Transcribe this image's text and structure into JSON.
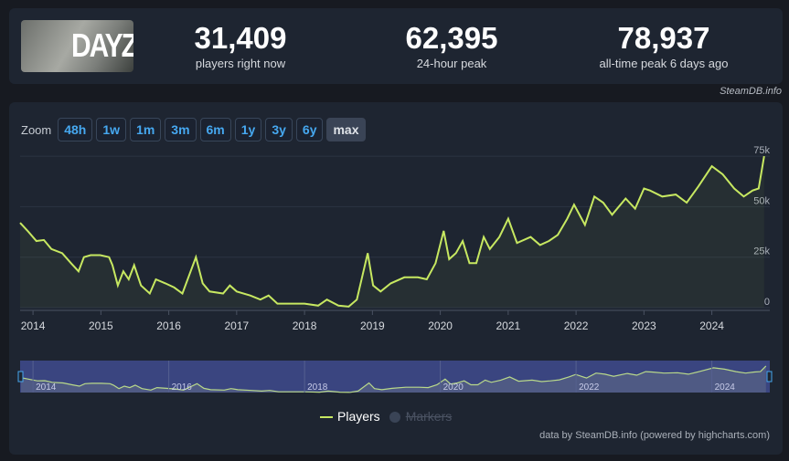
{
  "header": {
    "game_logo_text": "DAYZ",
    "stats": [
      {
        "value": "31,409",
        "label": "players right now"
      },
      {
        "value": "62,395",
        "label": "24-hour peak"
      },
      {
        "value": "78,937",
        "label": "all-time peak 6 days ago"
      }
    ],
    "credit": "SteamDB.info"
  },
  "zoom": {
    "label": "Zoom",
    "buttons": [
      "48h",
      "1w",
      "1m",
      "3m",
      "6m",
      "1y",
      "3y",
      "6y",
      "max"
    ],
    "selected": "max"
  },
  "legend": {
    "players": "Players",
    "markers": "Markers",
    "markers_hidden": true
  },
  "footer": "data by SteamDB.info (powered by highcharts.com)",
  "colors": {
    "line": "#c7e861",
    "navigator_mask": "#3a4580",
    "background": "#1e2531"
  },
  "chart_data": {
    "type": "line",
    "grid": true,
    "ylim": [
      0,
      80000
    ],
    "y_ticks": [
      "0",
      "25k",
      "50k",
      "75k"
    ],
    "y_tick_values": [
      0,
      25000,
      50000,
      75000
    ],
    "x_ticks": [
      "2014",
      "2015",
      "2016",
      "2017",
      "2018",
      "2019",
      "2020",
      "2021",
      "2022",
      "2023",
      "2024"
    ],
    "x_range": [
      2013.81,
      2024.8
    ],
    "series": [
      {
        "name": "Players",
        "points": [
          [
            2013.81,
            42000
          ],
          [
            2013.92,
            38000
          ],
          [
            2014.05,
            33000
          ],
          [
            2014.16,
            33500
          ],
          [
            2014.27,
            29000
          ],
          [
            2014.43,
            27000
          ],
          [
            2014.56,
            22000
          ],
          [
            2014.67,
            18000
          ],
          [
            2014.75,
            25000
          ],
          [
            2014.85,
            26000
          ],
          [
            2014.99,
            26000
          ],
          [
            2015.12,
            25000
          ],
          [
            2015.17,
            21000
          ],
          [
            2015.25,
            11000
          ],
          [
            2015.33,
            18000
          ],
          [
            2015.41,
            14000
          ],
          [
            2015.49,
            21000
          ],
          [
            2015.59,
            11000
          ],
          [
            2015.72,
            7000
          ],
          [
            2015.81,
            14000
          ],
          [
            2015.95,
            12000
          ],
          [
            2016.08,
            10000
          ],
          [
            2016.2,
            7000
          ],
          [
            2016.4,
            25000
          ],
          [
            2016.5,
            12000
          ],
          [
            2016.6,
            8000
          ],
          [
            2016.8,
            7000
          ],
          [
            2016.9,
            11000
          ],
          [
            2017.0,
            8000
          ],
          [
            2017.2,
            6000
          ],
          [
            2017.35,
            4000
          ],
          [
            2017.47,
            6000
          ],
          [
            2017.6,
            2000
          ],
          [
            2018.0,
            2000
          ],
          [
            2018.2,
            1000
          ],
          [
            2018.33,
            4000
          ],
          [
            2018.5,
            1000
          ],
          [
            2018.65,
            500
          ],
          [
            2018.77,
            4000
          ],
          [
            2018.93,
            27000
          ],
          [
            2019.01,
            11000
          ],
          [
            2019.12,
            8000
          ],
          [
            2019.27,
            12000
          ],
          [
            2019.47,
            15000
          ],
          [
            2019.67,
            15000
          ],
          [
            2019.8,
            14000
          ],
          [
            2019.93,
            22000
          ],
          [
            2020.05,
            38000
          ],
          [
            2020.13,
            24000
          ],
          [
            2020.23,
            27000
          ],
          [
            2020.33,
            33000
          ],
          [
            2020.43,
            22000
          ],
          [
            2020.53,
            22000
          ],
          [
            2020.64,
            35000
          ],
          [
            2020.73,
            29000
          ],
          [
            2020.87,
            35000
          ],
          [
            2021.0,
            44000
          ],
          [
            2021.13,
            32000
          ],
          [
            2021.33,
            35000
          ],
          [
            2021.47,
            31000
          ],
          [
            2021.6,
            33000
          ],
          [
            2021.73,
            36000
          ],
          [
            2021.87,
            44000
          ],
          [
            2021.97,
            51000
          ],
          [
            2022.13,
            41000
          ],
          [
            2022.27,
            55000
          ],
          [
            2022.4,
            52000
          ],
          [
            2022.53,
            46000
          ],
          [
            2022.73,
            54000
          ],
          [
            2022.87,
            49000
          ],
          [
            2023.0,
            59000
          ],
          [
            2023.09,
            58000
          ],
          [
            2023.27,
            55000
          ],
          [
            2023.47,
            56000
          ],
          [
            2023.63,
            52000
          ],
          [
            2023.8,
            60000
          ],
          [
            2024.0,
            70000
          ],
          [
            2024.16,
            66000
          ],
          [
            2024.33,
            59000
          ],
          [
            2024.47,
            55000
          ],
          [
            2024.6,
            58000
          ],
          [
            2024.69,
            59000
          ],
          [
            2024.77,
            75000
          ]
        ]
      }
    ]
  }
}
